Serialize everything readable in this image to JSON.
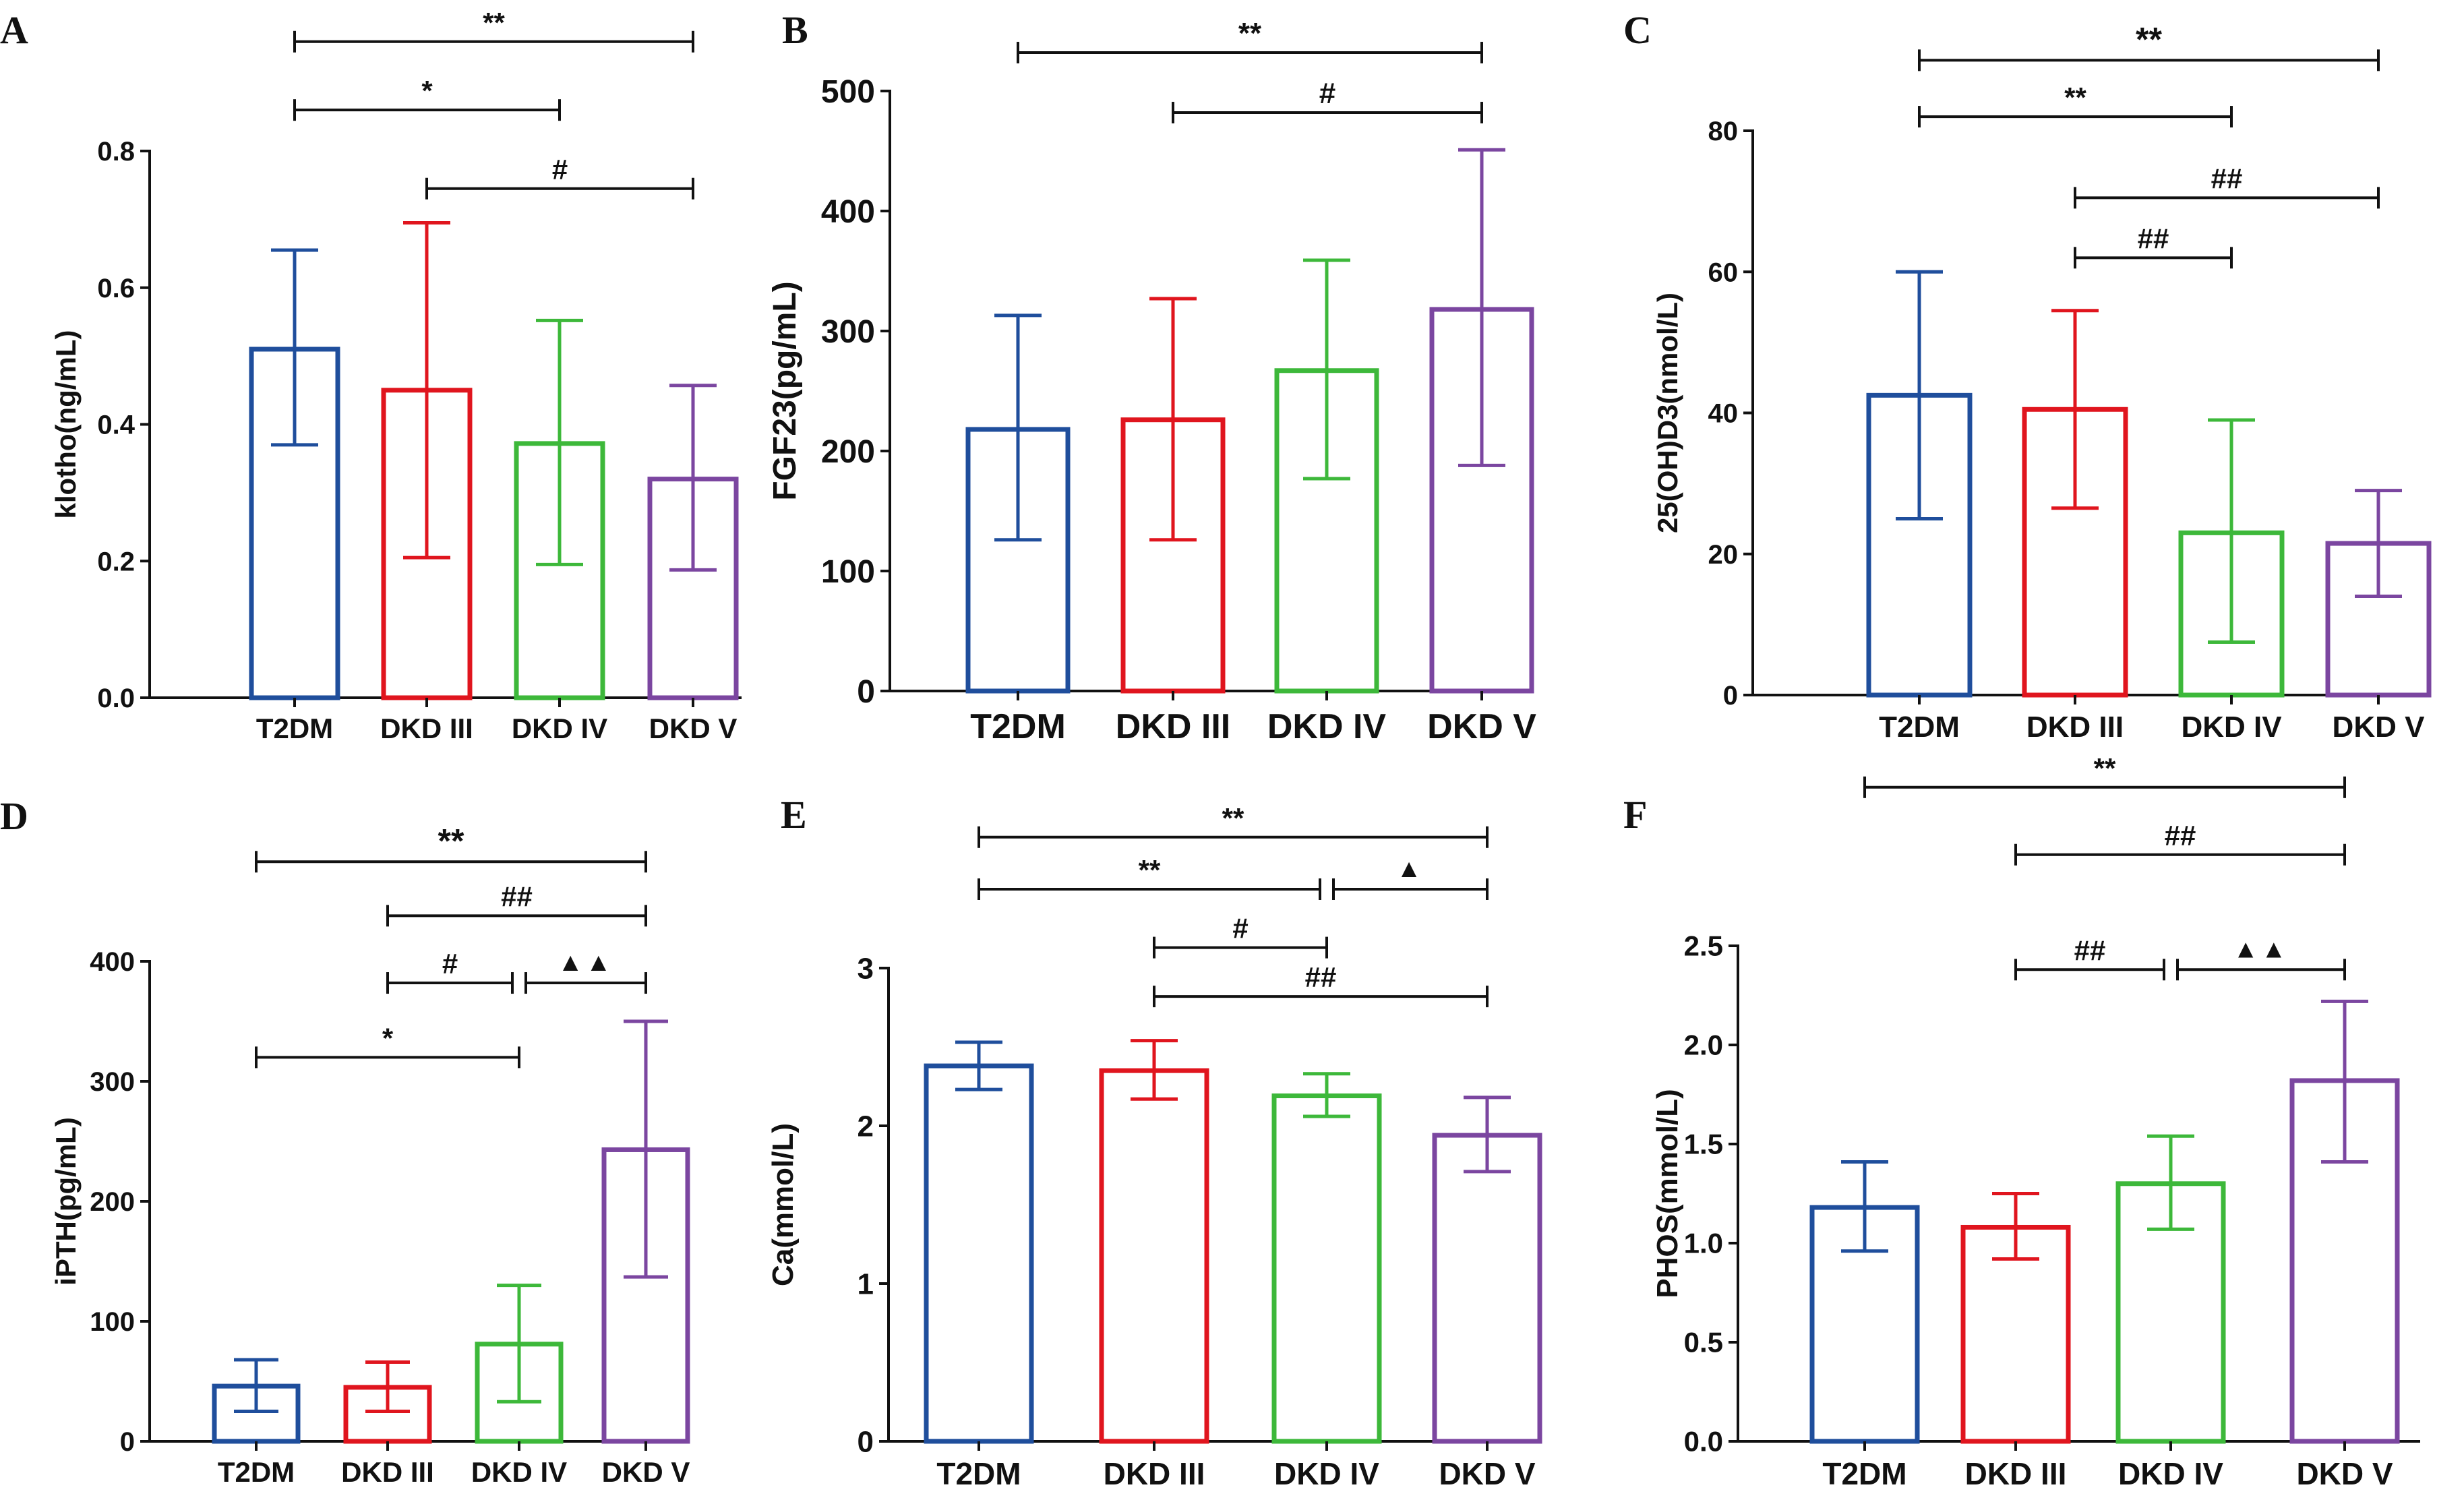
{
  "figure": {
    "groups": [
      "T2DM",
      "DKD III",
      "DKD IV",
      "DKD V"
    ],
    "group_colors": [
      "#1f4e9c",
      "#e0151e",
      "#3db83a",
      "#7b46a0"
    ]
  },
  "chart_data": [
    {
      "type": "bar",
      "panel": "A",
      "ylabel": "klotho(ng/mL)",
      "categories": [
        "T2DM",
        "DKD III",
        "DKD IV",
        "DKD V"
      ],
      "values": [
        0.51,
        0.45,
        0.372,
        0.32
      ],
      "err_low": [
        0.37,
        0.205,
        0.195,
        0.187
      ],
      "err_high": [
        0.655,
        0.695,
        0.552,
        0.457
      ],
      "ylim": [
        0,
        0.8
      ],
      "yticks": [
        "0.0",
        "0.2",
        "0.4",
        "0.6",
        "0.8"
      ],
      "brackets": [
        {
          "from": 0,
          "to": 3,
          "label": "**",
          "level": 0.96
        },
        {
          "from": 0,
          "to": 2,
          "label": "*",
          "level": 0.86
        },
        {
          "from": 1,
          "to": 3,
          "label": "#",
          "level": 0.745
        }
      ]
    },
    {
      "type": "bar",
      "panel": "B",
      "ylabel": "FGF23(pg/mL)",
      "categories": [
        "T2DM",
        "DKD III",
        "DKD IV",
        "DKD V"
      ],
      "values": [
        218,
        226,
        267,
        318
      ],
      "err_low": [
        126,
        126,
        177,
        188
      ],
      "err_high": [
        313,
        327,
        359,
        451
      ],
      "ylim": [
        0,
        500
      ],
      "yticks": [
        "0",
        "100",
        "200",
        "300",
        "400",
        "500"
      ],
      "brackets": [
        {
          "from": 0,
          "to": 3,
          "label": "**",
          "level": 532
        },
        {
          "from": 1,
          "to": 3,
          "label": "#",
          "level": 482
        }
      ]
    },
    {
      "type": "bar",
      "panel": "C",
      "ylabel": "25(OH)D3(nmol/L)",
      "categories": [
        "T2DM",
        "DKD III",
        "DKD IV",
        "DKD V"
      ],
      "values": [
        42.5,
        40.5,
        23,
        21.5
      ],
      "err_low": [
        25,
        26.5,
        7.5,
        14
      ],
      "err_high": [
        60,
        54.5,
        39,
        29
      ],
      "ylim": [
        0,
        80
      ],
      "yticks": [
        "0",
        "20",
        "40",
        "60",
        "80"
      ],
      "brackets": [
        {
          "from": 0,
          "to": 3,
          "label": "**",
          "level": 90
        },
        {
          "from": 0,
          "to": 2,
          "label": "**",
          "level": 82
        },
        {
          "from": 1,
          "to": 3,
          "label": "##",
          "level": 70.5
        },
        {
          "from": 1,
          "to": 2,
          "label": "##",
          "level": 62
        }
      ]
    },
    {
      "type": "bar",
      "panel": "D",
      "ylabel": "iPTH(pg/mL)",
      "categories": [
        "T2DM",
        "DKD III",
        "DKD IV",
        "DKD V"
      ],
      "values": [
        46,
        45,
        81,
        243
      ],
      "err_low": [
        25,
        25,
        33,
        137
      ],
      "err_high": [
        68,
        66,
        130,
        350
      ],
      "ylim": [
        0,
        400
      ],
      "yticks": [
        "0",
        "100",
        "200",
        "300",
        "400"
      ],
      "brackets": [
        {
          "from": 0,
          "to": 3,
          "label": "**",
          "level": 483
        },
        {
          "from": 1,
          "to": 3,
          "label": "##",
          "level": 438
        },
        {
          "from": 1,
          "to": 2,
          "label": "#",
          "level": 382
        },
        {
          "from": 2,
          "to": 3,
          "label": "▲▲",
          "level": 382
        },
        {
          "from": 0,
          "to": 2,
          "label": "*",
          "level": 320
        }
      ]
    },
    {
      "type": "bar",
      "panel": "E",
      "ylabel": "Ca(mmol/L)",
      "categories": [
        "T2DM",
        "DKD III",
        "DKD IV",
        "DKD V"
      ],
      "values": [
        2.38,
        2.35,
        2.19,
        1.94
      ],
      "err_low": [
        2.23,
        2.17,
        2.06,
        1.71
      ],
      "err_high": [
        2.53,
        2.54,
        2.33,
        2.18
      ],
      "ylim": [
        0,
        3
      ],
      "yticks": [
        "0",
        "1",
        "2",
        "3"
      ],
      "brackets": [
        {
          "from": 0,
          "to": 3,
          "label": "**",
          "level": 3.83
        },
        {
          "from": 0,
          "to": 2,
          "label": "**",
          "level": 3.5
        },
        {
          "from": 2,
          "to": 3,
          "label": "▲",
          "level": 3.5
        },
        {
          "from": 1,
          "to": 2,
          "label": "#",
          "level": 3.13
        },
        {
          "from": 1,
          "to": 3,
          "label": "##",
          "level": 2.82
        }
      ]
    },
    {
      "type": "bar",
      "panel": "F",
      "ylabel": "PHOS(mmol/L)",
      "categories": [
        "T2DM",
        "DKD III",
        "DKD IV",
        "DKD V"
      ],
      "values": [
        1.18,
        1.08,
        1.3,
        1.82
      ],
      "err_low": [
        0.96,
        0.92,
        1.07,
        1.41
      ],
      "err_high": [
        1.41,
        1.25,
        1.54,
        2.22
      ],
      "ylim": [
        0,
        2.5
      ],
      "yticks": [
        "0.0",
        "0.5",
        "1.0",
        "1.5",
        "2.0",
        "2.5"
      ],
      "brackets": [
        {
          "from": 0,
          "to": 3,
          "label": "**",
          "level": 3.3
        },
        {
          "from": 1,
          "to": 3,
          "label": "##",
          "level": 2.96
        },
        {
          "from": 1,
          "to": 2,
          "label": "##",
          "level": 2.38
        },
        {
          "from": 2,
          "to": 3,
          "label": "▲▲",
          "level": 2.38
        }
      ]
    }
  ]
}
